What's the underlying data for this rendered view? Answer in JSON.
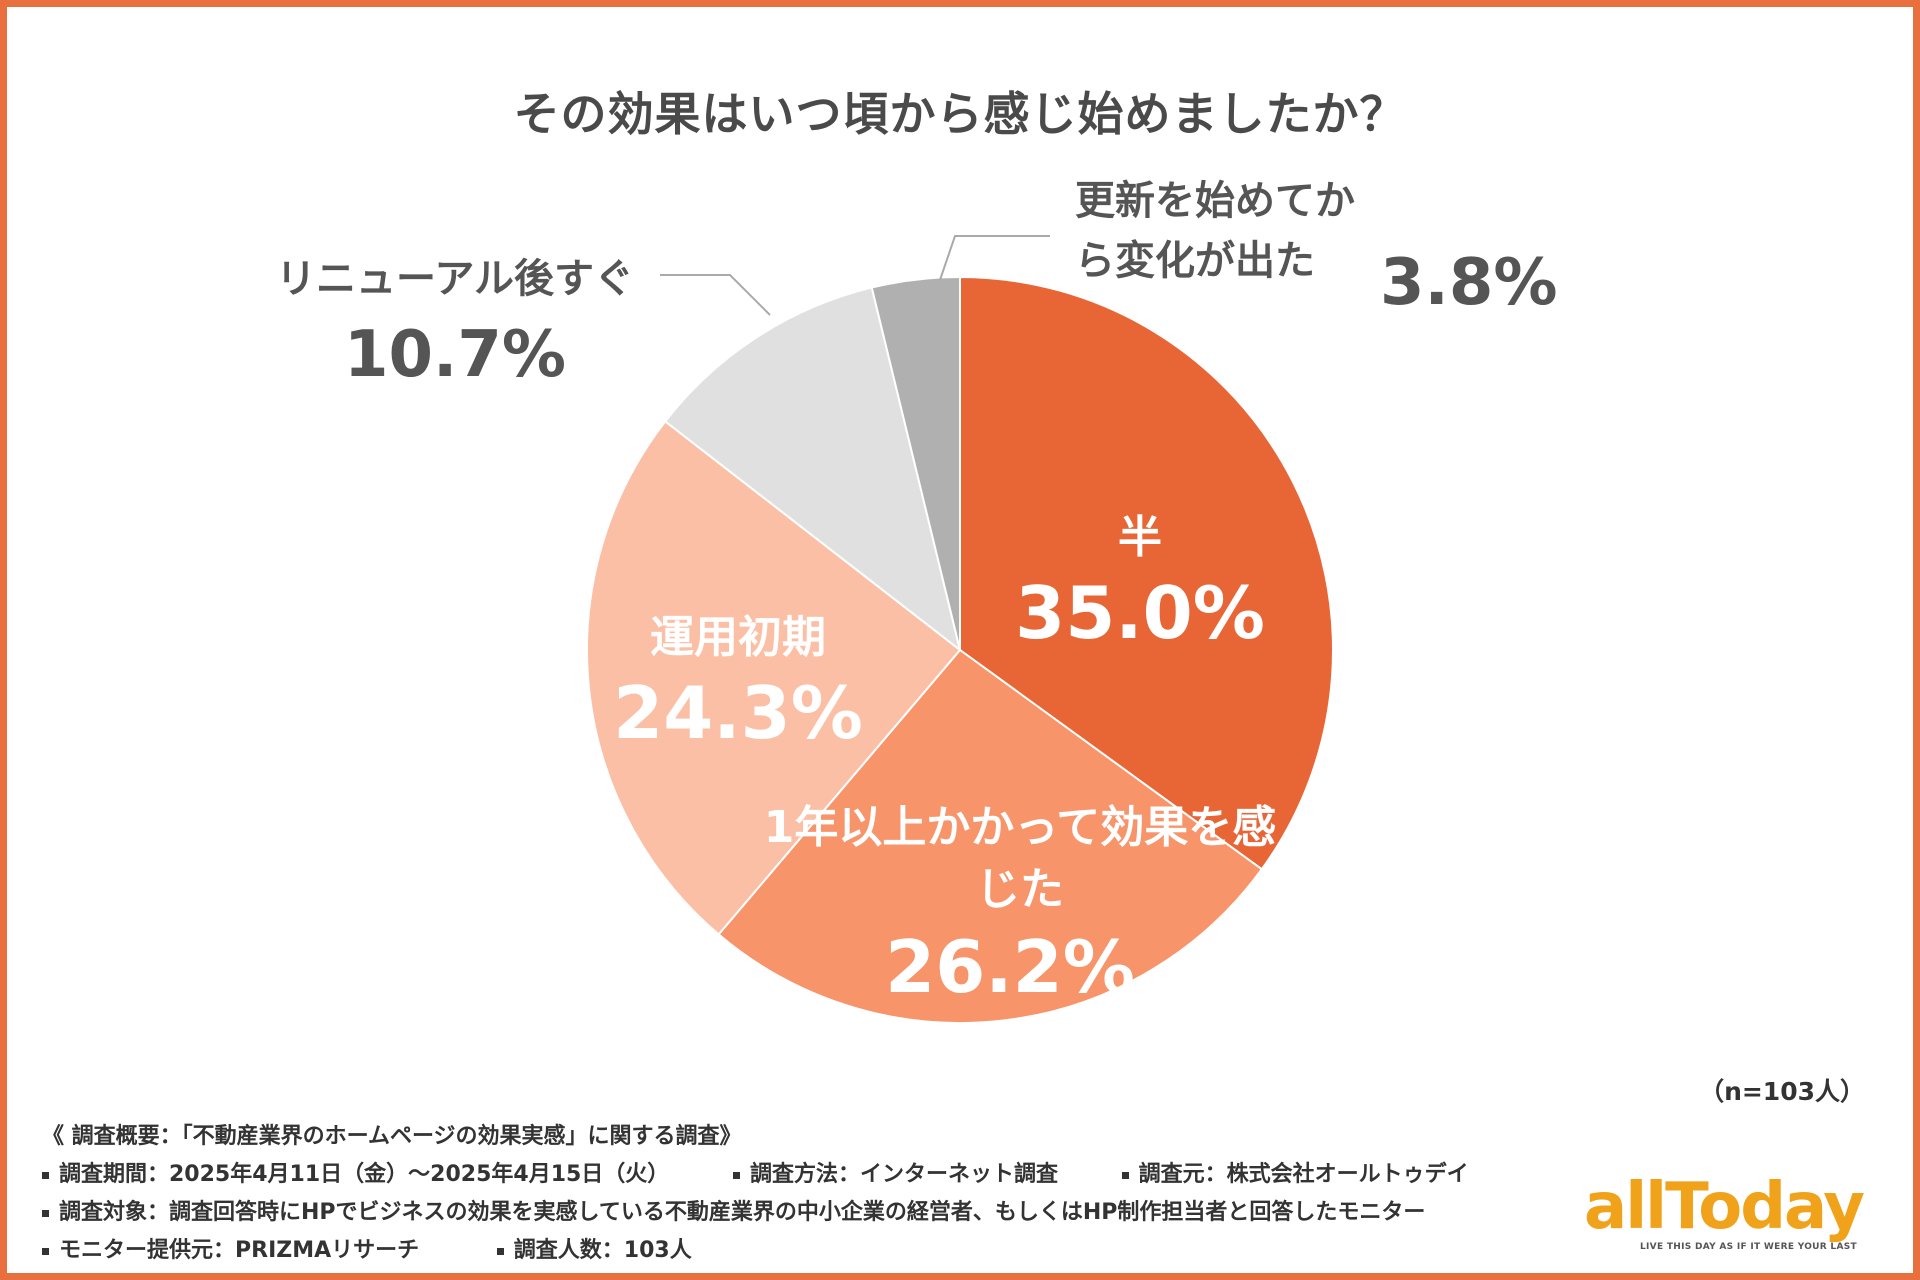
{
  "title": "その効果はいつ頃から感じ始めましたか？",
  "chart_data": {
    "type": "pie",
    "title": "その効果はいつ頃から感じ始めましたか？",
    "unit": "%",
    "slices": [
      {
        "label": "半年程度で実感",
        "value": 35.0,
        "color": "#e86636",
        "text_color": "#ffffff"
      },
      {
        "label": "1年以上かかって効果を感じた",
        "value": 26.2,
        "color": "#f7946a",
        "text_color": "#ffffff"
      },
      {
        "label": "運用初期",
        "value": 24.3,
        "color": "#fbbfa6",
        "text_color": "#ffffff"
      },
      {
        "label": "リニューアル後すぐ",
        "value": 10.7,
        "color": "#e0e0e0",
        "text_color": "#555555"
      },
      {
        "label": "更新を始めてから変化が出た",
        "value": 3.8,
        "color": "#b0b0b0",
        "text_color": "#555555"
      }
    ]
  },
  "sample_size": "（n=103人）",
  "survey": {
    "heading": "《 調査概要：「不動産業界のホームページの効果実感」に関する調査》",
    "period": "調査期間：2025年4月11日（金）〜2025年4月15日（火）",
    "method": "調査方法：インターネット調査",
    "organizer": "調査元：株式会社オールトゥデイ",
    "target": "調査対象：調査回答時にHPでビジネスの効果を実感している不動産業界の中小企業の経営者、もしくはHP制作担当者と回答したモニター",
    "provider": "モニター提供元：PRIZMAリサーチ",
    "count": "調査人数：103人"
  },
  "logo": {
    "wordmark": "allToday",
    "tagline": "LIVE THIS DAY AS IF IT WERE YOUR LAST"
  }
}
